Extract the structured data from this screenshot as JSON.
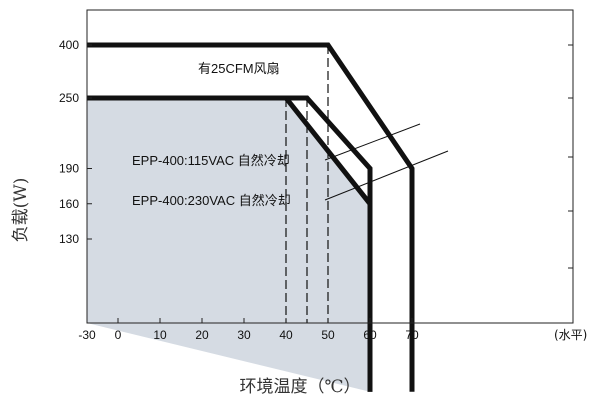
{
  "chart_data": {
    "type": "line",
    "title": "",
    "xlabel": "环境温度（℃）",
    "ylabel": "负载(W)",
    "x_unit_note": "(水平)",
    "xlim": [
      -30,
      75
    ],
    "ylim": [
      0,
      440
    ],
    "x_ticks": [
      -30,
      0,
      10,
      20,
      30,
      40,
      50,
      60,
      70
    ],
    "y_ticks": [
      130,
      160,
      190,
      250,
      400
    ],
    "grid": false,
    "series": [
      {
        "name": "有25CFM风扇",
        "color": "#111111",
        "fill": "#ffffff",
        "points": [
          [
            -30,
            400
          ],
          [
            50,
            400
          ],
          [
            70,
            190
          ],
          [
            70,
            0
          ]
        ],
        "guide_x": 50
      },
      {
        "name": "EPP-400:115VAC 自然冷却",
        "color": "#111111",
        "fill": "#ffffff",
        "points": [
          [
            -30,
            250
          ],
          [
            45,
            250
          ],
          [
            60,
            190
          ],
          [
            60,
            0
          ]
        ],
        "guide_x": 45
      },
      {
        "name": "EPP-400:230VAC 自然冷却",
        "color": "#111111",
        "fill": "#d5dbe3",
        "points": [
          [
            -30,
            250
          ],
          [
            40,
            250
          ],
          [
            60,
            160
          ],
          [
            60,
            0
          ]
        ],
        "guide_x": 40
      }
    ],
    "annotations": [
      {
        "text": "有25CFM风扇",
        "x": 8,
        "y": 355,
        "arrow_to": null
      },
      {
        "text": "EPP-400:115VAC 自然冷却",
        "x": 10,
        "y": 210,
        "arrow_to": [
          52,
          220
        ]
      },
      {
        "text": "EPP-400:230VAC 自然冷却",
        "x": 10,
        "y": 170,
        "arrow_to": [
          55,
          190
        ]
      }
    ]
  }
}
